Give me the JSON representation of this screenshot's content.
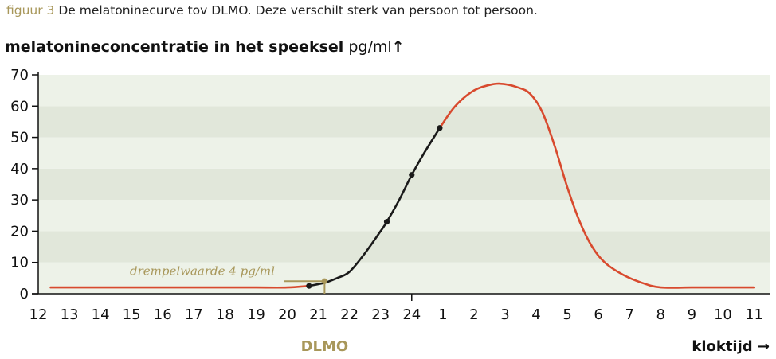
{
  "caption": {
    "figure_label": "figuur 3",
    "text": "De melatoninecurve tov DLMO. Deze verschilt sterk van persoon tot persoon."
  },
  "colors": {
    "band_dark": "#e1e7da",
    "band_light": "#edf2e8",
    "curve_red": "#d84a2e",
    "curve_black": "#1a1a1a",
    "accent_gold": "#a8975a"
  },
  "chart_data": {
    "type": "line",
    "ylabel_bold": "melatonineconcentratie in het speeksel",
    "ylabel_unit": "pg/ml",
    "ylabel_arrow": "↑",
    "xlabel": "kloktijd →",
    "ylim": [
      0,
      70
    ],
    "yticks": [
      "0",
      "10",
      "20",
      "30",
      "40",
      "50",
      "60",
      "70"
    ],
    "xticks": [
      "12",
      "13",
      "14",
      "15",
      "16",
      "17",
      "18",
      "19",
      "20",
      "21",
      "22",
      "23",
      "24",
      "1",
      "2",
      "3",
      "4",
      "5",
      "6",
      "7",
      "8",
      "9",
      "10",
      "11"
    ],
    "grid": "horizontal bands",
    "series": [
      {
        "x": [
          12.4,
          13,
          14,
          15,
          16,
          17,
          18,
          19,
          20,
          20.7,
          21.2,
          21.6,
          22,
          22.5,
          23,
          23.2,
          23.6,
          24,
          24.4,
          24.9,
          25.4,
          26,
          26.6,
          27,
          27.4,
          27.8,
          28.2,
          28.6,
          29,
          29.4,
          29.8,
          30.2,
          30.8,
          31.4,
          32,
          33,
          34,
          35,
          34.9
        ],
        "y": [
          2,
          2,
          2,
          2,
          2,
          2,
          2,
          2,
          2,
          2.5,
          3.5,
          5,
          7,
          13,
          20,
          23,
          30,
          38,
          45,
          53,
          60,
          65,
          67,
          67,
          66,
          64,
          58,
          47,
          34,
          23,
          15,
          10,
          6,
          3.5,
          2,
          2,
          2,
          2,
          2
        ]
      }
    ],
    "markers": [
      {
        "x": 20.7,
        "y": 2.5
      },
      {
        "x": 23.2,
        "y": 23
      },
      {
        "x": 24,
        "y": 38
      },
      {
        "x": 24.9,
        "y": 53
      }
    ],
    "threshold": {
      "label": "drempelwaarde 4 pg/ml",
      "value": 4,
      "x": 21.2
    },
    "dlmo_label": "DLMO"
  }
}
